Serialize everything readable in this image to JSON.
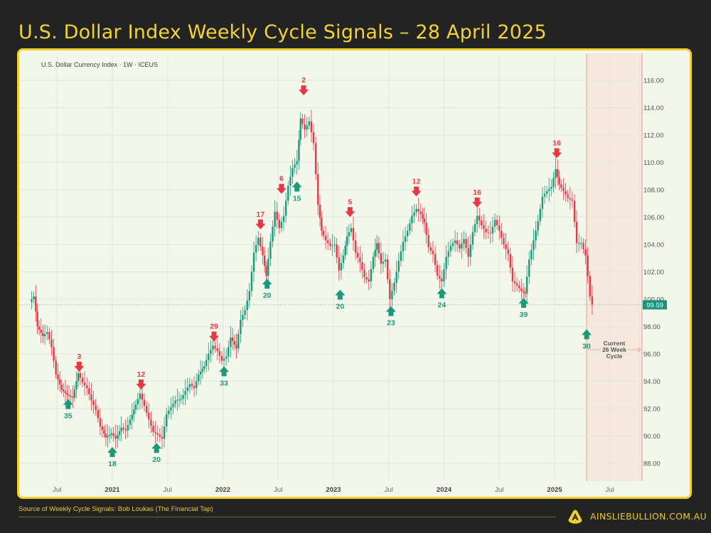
{
  "page": {
    "title": "U.S. Dollar Index Weekly Cycle Signals – 28 April 2025",
    "symbol_label": "U.S. Dollar Currency Index · 1W · ICEUS",
    "source": "Source of Weekly Cycle Signals: Bob Loukas (The Financial Tap)",
    "brand": "AINSLIEBULLION.COM.AU",
    "logo_icon": "ainslie-a-logo-icon"
  },
  "colors": {
    "background": "#232323",
    "panel": "#f3f6ea",
    "border": "#f2cf2f",
    "accent_text": "#e5c832",
    "up": "#1a9a7a",
    "down": "#e53946",
    "shade": "#f5e4d8",
    "shade_line": "#e89a8e",
    "price_badge": "#15957b"
  },
  "chart_data": {
    "type": "candlestick",
    "title": "U.S. Dollar Index Weekly Cycle Signals – 28 April 2025",
    "series_name": "U.S. Dollar Currency Index · 1W · ICEUS",
    "xlabel": "",
    "ylabel": "",
    "ylim": [
      87,
      117
    ],
    "y_ticks": [
      "116.00",
      "114.00",
      "112.00",
      "110.00",
      "108.00",
      "106.00",
      "104.00",
      "102.00",
      "100.00",
      "98.00",
      "96.00",
      "94.00",
      "92.00",
      "90.00",
      "88.00"
    ],
    "x_ticks": [
      {
        "label": "Jul",
        "bold": false,
        "t": 2020.5
      },
      {
        "label": "2021",
        "bold": true,
        "t": 2021.0
      },
      {
        "label": "Jul",
        "bold": false,
        "t": 2021.5
      },
      {
        "label": "2022",
        "bold": true,
        "t": 2022.0
      },
      {
        "label": "Jul",
        "bold": false,
        "t": 2022.5
      },
      {
        "label": "2023",
        "bold": true,
        "t": 2023.0
      },
      {
        "label": "Jul",
        "bold": false,
        "t": 2023.5
      },
      {
        "label": "2024",
        "bold": true,
        "t": 2024.0
      },
      {
        "label": "Jul",
        "bold": false,
        "t": 2024.5
      },
      {
        "label": "2025",
        "bold": true,
        "t": 2025.0
      },
      {
        "label": "Jul",
        "bold": false,
        "t": 2025.5
      }
    ],
    "last_price": "99.59",
    "grid": true,
    "path_points": [
      [
        2020.26,
        99.8
      ],
      [
        2020.3,
        100.2
      ],
      [
        2020.33,
        98.0
      ],
      [
        2020.38,
        97.3
      ],
      [
        2020.42,
        97.6
      ],
      [
        2020.46,
        96.5
      ],
      [
        2020.5,
        94.5
      ],
      [
        2020.55,
        93.4
      ],
      [
        2020.6,
        93.0
      ],
      [
        2020.65,
        92.8
      ],
      [
        2020.7,
        94.6
      ],
      [
        2020.74,
        93.9
      ],
      [
        2020.78,
        93.5
      ],
      [
        2020.82,
        92.6
      ],
      [
        2020.86,
        91.9
      ],
      [
        2020.9,
        90.7
      ],
      [
        2020.95,
        89.9
      ],
      [
        2021.0,
        90.2
      ],
      [
        2021.04,
        89.8
      ],
      [
        2021.09,
        90.6
      ],
      [
        2021.13,
        90.4
      ],
      [
        2021.17,
        91.2
      ],
      [
        2021.22,
        92.3
      ],
      [
        2021.26,
        93.1
      ],
      [
        2021.3,
        92.2
      ],
      [
        2021.34,
        91.2
      ],
      [
        2021.38,
        90.3
      ],
      [
        2021.42,
        90.1
      ],
      [
        2021.46,
        89.8
      ],
      [
        2021.5,
        91.6
      ],
      [
        2021.54,
        92.1
      ],
      [
        2021.58,
        92.6
      ],
      [
        2021.63,
        92.7
      ],
      [
        2021.67,
        93.3
      ],
      [
        2021.71,
        93.8
      ],
      [
        2021.75,
        93.5
      ],
      [
        2021.79,
        94.5
      ],
      [
        2021.84,
        95.1
      ],
      [
        2021.88,
        96.0
      ],
      [
        2021.92,
        96.6
      ],
      [
        2021.96,
        96.2
      ],
      [
        2022.0,
        95.5
      ],
      [
        2022.04,
        95.8
      ],
      [
        2022.08,
        97.2
      ],
      [
        2022.13,
        96.4
      ],
      [
        2022.17,
        98.5
      ],
      [
        2022.21,
        99.2
      ],
      [
        2022.25,
        100.6
      ],
      [
        2022.29,
        103.4
      ],
      [
        2022.33,
        104.5
      ],
      [
        2022.37,
        103.2
      ],
      [
        2022.4,
        101.7
      ],
      [
        2022.44,
        104.2
      ],
      [
        2022.48,
        106.4
      ],
      [
        2022.52,
        105.2
      ],
      [
        2022.56,
        106.1
      ],
      [
        2022.6,
        108.3
      ],
      [
        2022.64,
        109.6
      ],
      [
        2022.68,
        110.1
      ],
      [
        2022.71,
        113.2
      ],
      [
        2022.75,
        112.4
      ],
      [
        2022.79,
        113.0
      ],
      [
        2022.83,
        111.4
      ],
      [
        2022.87,
        106.9
      ],
      [
        2022.9,
        105.0
      ],
      [
        2022.94,
        104.3
      ],
      [
        2022.98,
        103.9
      ],
      [
        2023.02,
        104.0
      ],
      [
        2023.06,
        102.1
      ],
      [
        2023.1,
        103.2
      ],
      [
        2023.13,
        104.6
      ],
      [
        2023.17,
        105.2
      ],
      [
        2023.21,
        103.4
      ],
      [
        2023.25,
        102.7
      ],
      [
        2023.29,
        101.6
      ],
      [
        2023.33,
        101.3
      ],
      [
        2023.37,
        103.1
      ],
      [
        2023.4,
        104.1
      ],
      [
        2023.44,
        102.6
      ],
      [
        2023.48,
        102.9
      ],
      [
        2023.52,
        100.0
      ],
      [
        2023.56,
        101.2
      ],
      [
        2023.6,
        102.8
      ],
      [
        2023.64,
        104.2
      ],
      [
        2023.68,
        105.0
      ],
      [
        2023.72,
        106.1
      ],
      [
        2023.76,
        106.6
      ],
      [
        2023.8,
        106.2
      ],
      [
        2023.83,
        105.6
      ],
      [
        2023.87,
        103.8
      ],
      [
        2023.91,
        103.3
      ],
      [
        2023.95,
        101.7
      ],
      [
        2023.99,
        101.3
      ],
      [
        2024.03,
        103.1
      ],
      [
        2024.07,
        103.9
      ],
      [
        2024.11,
        104.3
      ],
      [
        2024.15,
        103.7
      ],
      [
        2024.19,
        104.4
      ],
      [
        2024.23,
        103.1
      ],
      [
        2024.27,
        104.9
      ],
      [
        2024.31,
        106.1
      ],
      [
        2024.35,
        105.4
      ],
      [
        2024.39,
        104.9
      ],
      [
        2024.43,
        104.8
      ],
      [
        2024.47,
        105.8
      ],
      [
        2024.51,
        105.0
      ],
      [
        2024.55,
        104.0
      ],
      [
        2024.59,
        103.3
      ],
      [
        2024.63,
        101.3
      ],
      [
        2024.67,
        101.0
      ],
      [
        2024.71,
        100.6
      ],
      [
        2024.74,
        100.4
      ],
      [
        2024.78,
        102.9
      ],
      [
        2024.82,
        104.3
      ],
      [
        2024.86,
        105.7
      ],
      [
        2024.9,
        107.5
      ],
      [
        2024.94,
        107.9
      ],
      [
        2024.98,
        108.2
      ],
      [
        2025.02,
        109.5
      ],
      [
        2025.05,
        108.4
      ],
      [
        2025.09,
        107.9
      ],
      [
        2025.13,
        107.4
      ],
      [
        2025.17,
        107.2
      ],
      [
        2025.21,
        104.1
      ],
      [
        2025.25,
        104.1
      ],
      [
        2025.29,
        103.2
      ],
      [
        2025.33,
        100.2
      ],
      [
        2025.35,
        99.6
      ]
    ],
    "signals": [
      {
        "type": "low",
        "label": "35",
        "t": 2020.6,
        "price": 92.8
      },
      {
        "type": "high",
        "label": "3",
        "t": 2020.7,
        "price": 94.6
      },
      {
        "type": "low",
        "label": "18",
        "t": 2021.0,
        "price": 89.3
      },
      {
        "type": "high",
        "label": "12",
        "t": 2021.26,
        "price": 93.3
      },
      {
        "type": "low",
        "label": "20",
        "t": 2021.4,
        "price": 89.6
      },
      {
        "type": "high",
        "label": "29",
        "t": 2021.92,
        "price": 96.8
      },
      {
        "type": "low",
        "label": "33",
        "t": 2022.01,
        "price": 95.2
      },
      {
        "type": "high",
        "label": "17",
        "t": 2022.34,
        "price": 105.0
      },
      {
        "type": "low",
        "label": "20",
        "t": 2022.4,
        "price": 101.6
      },
      {
        "type": "high",
        "label": "6",
        "t": 2022.53,
        "price": 107.6
      },
      {
        "type": "low",
        "label": "15",
        "t": 2022.67,
        "price": 108.7
      },
      {
        "type": "high",
        "label": "2",
        "t": 2022.73,
        "price": 114.8
      },
      {
        "type": "low",
        "label": "20",
        "t": 2023.06,
        "price": 100.8
      },
      {
        "type": "high",
        "label": "5",
        "t": 2023.15,
        "price": 105.9
      },
      {
        "type": "low",
        "label": "23",
        "t": 2023.52,
        "price": 99.6
      },
      {
        "type": "high",
        "label": "12",
        "t": 2023.75,
        "price": 107.4
      },
      {
        "type": "low",
        "label": "24",
        "t": 2023.98,
        "price": 100.9
      },
      {
        "type": "high",
        "label": "16",
        "t": 2024.3,
        "price": 106.6
      },
      {
        "type": "low",
        "label": "39",
        "t": 2024.72,
        "price": 100.2
      },
      {
        "type": "high",
        "label": "16",
        "t": 2025.02,
        "price": 110.2
      },
      {
        "type": "low",
        "label": "30",
        "t": 2025.29,
        "price": 97.9
      }
    ],
    "annotations": [
      {
        "text": "Current 26 Week Cycle",
        "lines": [
          "Current",
          "26 Week",
          "Cycle"
        ]
      }
    ]
  }
}
